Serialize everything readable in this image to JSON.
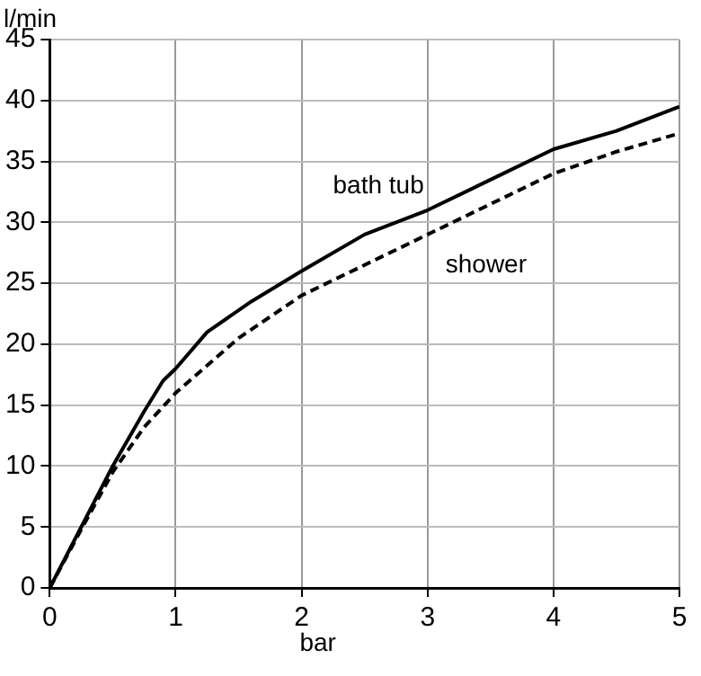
{
  "chart_data": {
    "type": "line",
    "xlabel": "bar",
    "ylabel": "l/min",
    "xlim": [
      0,
      5
    ],
    "xticks": [
      0,
      1,
      2,
      3,
      4,
      5
    ],
    "ylim": [
      0,
      45
    ],
    "yticks": [
      0,
      5,
      10,
      15,
      20,
      25,
      30,
      35,
      40,
      45
    ],
    "grid": true,
    "legend": false,
    "marker": "none",
    "series": [
      {
        "name": "bath tub",
        "color": "#000000",
        "line_style": "solid",
        "x": [
          0,
          0.25,
          0.5,
          0.75,
          0.9,
          1,
          1.25,
          1.6,
          2,
          2.5,
          3,
          3.5,
          4,
          4.5,
          5
        ],
        "values": [
          0,
          5,
          10,
          14.5,
          17,
          18,
          21,
          23.5,
          26,
          29,
          31,
          33.5,
          36,
          37.5,
          39.5
        ]
      },
      {
        "name": "shower",
        "color": "#000000",
        "line_style": "dashed",
        "x": [
          0,
          0.25,
          0.5,
          0.75,
          1,
          1.5,
          2,
          2.5,
          3,
          3.5,
          4,
          4.5,
          5
        ],
        "values": [
          0,
          4.8,
          9.5,
          13.2,
          16,
          20.5,
          24,
          26.5,
          29,
          31.5,
          34,
          35.8,
          37.3
        ]
      }
    ]
  }
}
